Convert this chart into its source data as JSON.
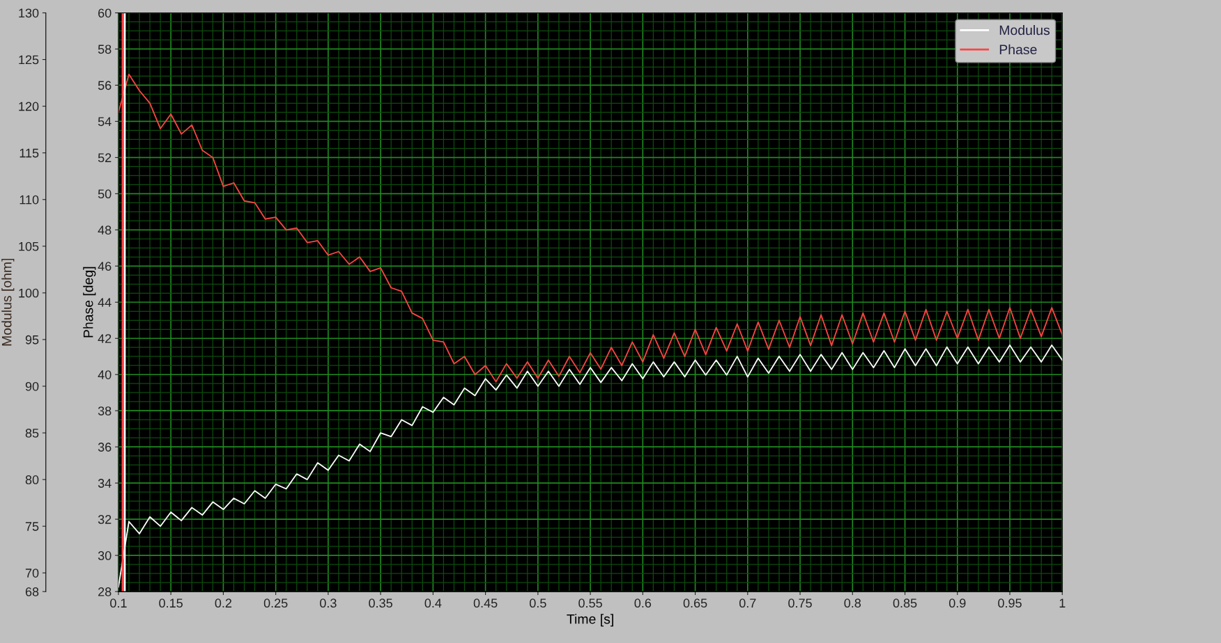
{
  "chart_data": {
    "type": "line",
    "xlabel": "Time [s]",
    "ylabel": "Modulus [ohm]",
    "y2label": "Phase [deg]",
    "x": [
      0.1,
      0.11,
      0.12,
      0.13,
      0.14,
      0.15,
      0.16,
      0.17,
      0.18,
      0.19,
      0.2,
      0.21,
      0.22,
      0.23,
      0.24,
      0.25,
      0.26,
      0.27,
      0.28,
      0.29,
      0.3,
      0.31,
      0.32,
      0.33,
      0.34,
      0.35,
      0.36,
      0.37,
      0.38,
      0.39,
      0.4,
      0.41,
      0.42,
      0.43,
      0.44,
      0.45,
      0.46,
      0.47,
      0.48,
      0.49,
      0.5,
      0.51,
      0.52,
      0.53,
      0.54,
      0.55,
      0.56,
      0.57,
      0.58,
      0.59,
      0.6,
      0.61,
      0.62,
      0.63,
      0.64,
      0.65,
      0.66,
      0.67,
      0.68,
      0.69,
      0.7,
      0.71,
      0.72,
      0.73,
      0.74,
      0.75,
      0.76,
      0.77,
      0.78,
      0.79,
      0.8,
      0.81,
      0.82,
      0.83,
      0.84,
      0.85,
      0.86,
      0.87,
      0.88,
      0.89,
      0.9,
      0.91,
      0.92,
      0.93,
      0.94,
      0.95,
      0.96,
      0.97,
      0.98,
      0.99,
      1
    ],
    "series": [
      {
        "name": "Modulus",
        "color": "#ffffff",
        "axis": "y",
        "values": [
          68.5,
          75.5,
          74.2,
          76.0,
          75.0,
          76.5,
          75.6,
          77.0,
          76.2,
          77.6,
          76.8,
          78.0,
          77.4,
          78.8,
          78.0,
          79.5,
          79.0,
          80.6,
          80.0,
          81.8,
          81.0,
          82.6,
          82.0,
          83.8,
          83.0,
          85.0,
          84.6,
          86.4,
          85.8,
          87.8,
          87.2,
          88.8,
          88.0,
          89.8,
          89.0,
          90.8,
          89.6,
          91.2,
          89.8,
          91.6,
          90.0,
          91.6,
          90.0,
          91.8,
          90.2,
          92.0,
          90.4,
          92.0,
          90.6,
          92.4,
          90.8,
          92.6,
          91.0,
          92.6,
          91.0,
          92.8,
          91.2,
          92.8,
          91.2,
          93.2,
          91.0,
          93.0,
          91.4,
          93.2,
          91.6,
          93.4,
          91.6,
          93.4,
          91.8,
          93.6,
          91.8,
          93.6,
          92.0,
          93.8,
          92.0,
          94.0,
          92.2,
          94.0,
          92.2,
          94.2,
          92.4,
          94.2,
          92.4,
          94.2,
          92.6,
          94.4,
          92.6,
          94.2,
          92.6,
          94.4,
          92.8
        ]
      },
      {
        "name": "Phase",
        "color": "#ff4444",
        "axis": "y2",
        "values": [
          54.5,
          56.6,
          55.7,
          55.0,
          53.6,
          54.4,
          53.3,
          53.8,
          52.4,
          52.0,
          50.4,
          50.6,
          49.6,
          49.5,
          48.6,
          48.7,
          48.0,
          48.1,
          47.3,
          47.4,
          46.6,
          46.8,
          46.1,
          46.5,
          45.7,
          45.9,
          44.8,
          44.6,
          43.4,
          43.1,
          41.9,
          41.8,
          40.6,
          41.0,
          40.0,
          40.5,
          39.6,
          40.6,
          39.8,
          40.7,
          39.8,
          40.8,
          39.9,
          41.0,
          40.1,
          41.2,
          40.3,
          41.5,
          40.5,
          41.8,
          40.7,
          42.2,
          40.9,
          42.3,
          41.0,
          42.5,
          41.1,
          42.6,
          41.3,
          42.8,
          41.3,
          42.9,
          41.4,
          43.0,
          41.5,
          43.2,
          41.6,
          43.3,
          41.6,
          43.3,
          41.7,
          43.4,
          41.8,
          43.4,
          41.8,
          43.5,
          41.9,
          43.6,
          41.9,
          43.5,
          42.0,
          43.6,
          41.9,
          43.6,
          42.0,
          43.7,
          42.0,
          43.6,
          42.1,
          43.7,
          42.2
        ]
      }
    ],
    "xlim": [
      0.1,
      1
    ],
    "xticks": [
      0.1,
      0.15,
      0.2,
      0.25,
      0.3,
      0.35,
      0.4,
      0.45,
      0.5,
      0.55,
      0.6,
      0.65,
      0.7,
      0.75,
      0.8,
      0.85,
      0.9,
      0.95,
      1
    ],
    "ylim": [
      68,
      130
    ],
    "yticks": [
      68,
      70,
      75,
      80,
      85,
      90,
      95,
      100,
      105,
      110,
      115,
      120,
      125,
      130
    ],
    "y2lim": [
      28,
      60
    ],
    "y2ticks": [
      28,
      30,
      32,
      34,
      36,
      38,
      40,
      42,
      44,
      46,
      48,
      50,
      52,
      54,
      56,
      58,
      60
    ],
    "ref_lines": [
      {
        "axis": "x",
        "value": 0.104,
        "color": "#ff4444"
      },
      {
        "axis": "x",
        "value": 0.106,
        "color": "#ffffff"
      }
    ],
    "grid": true,
    "legend": "top right",
    "line_style": "solid",
    "marker": "none"
  }
}
